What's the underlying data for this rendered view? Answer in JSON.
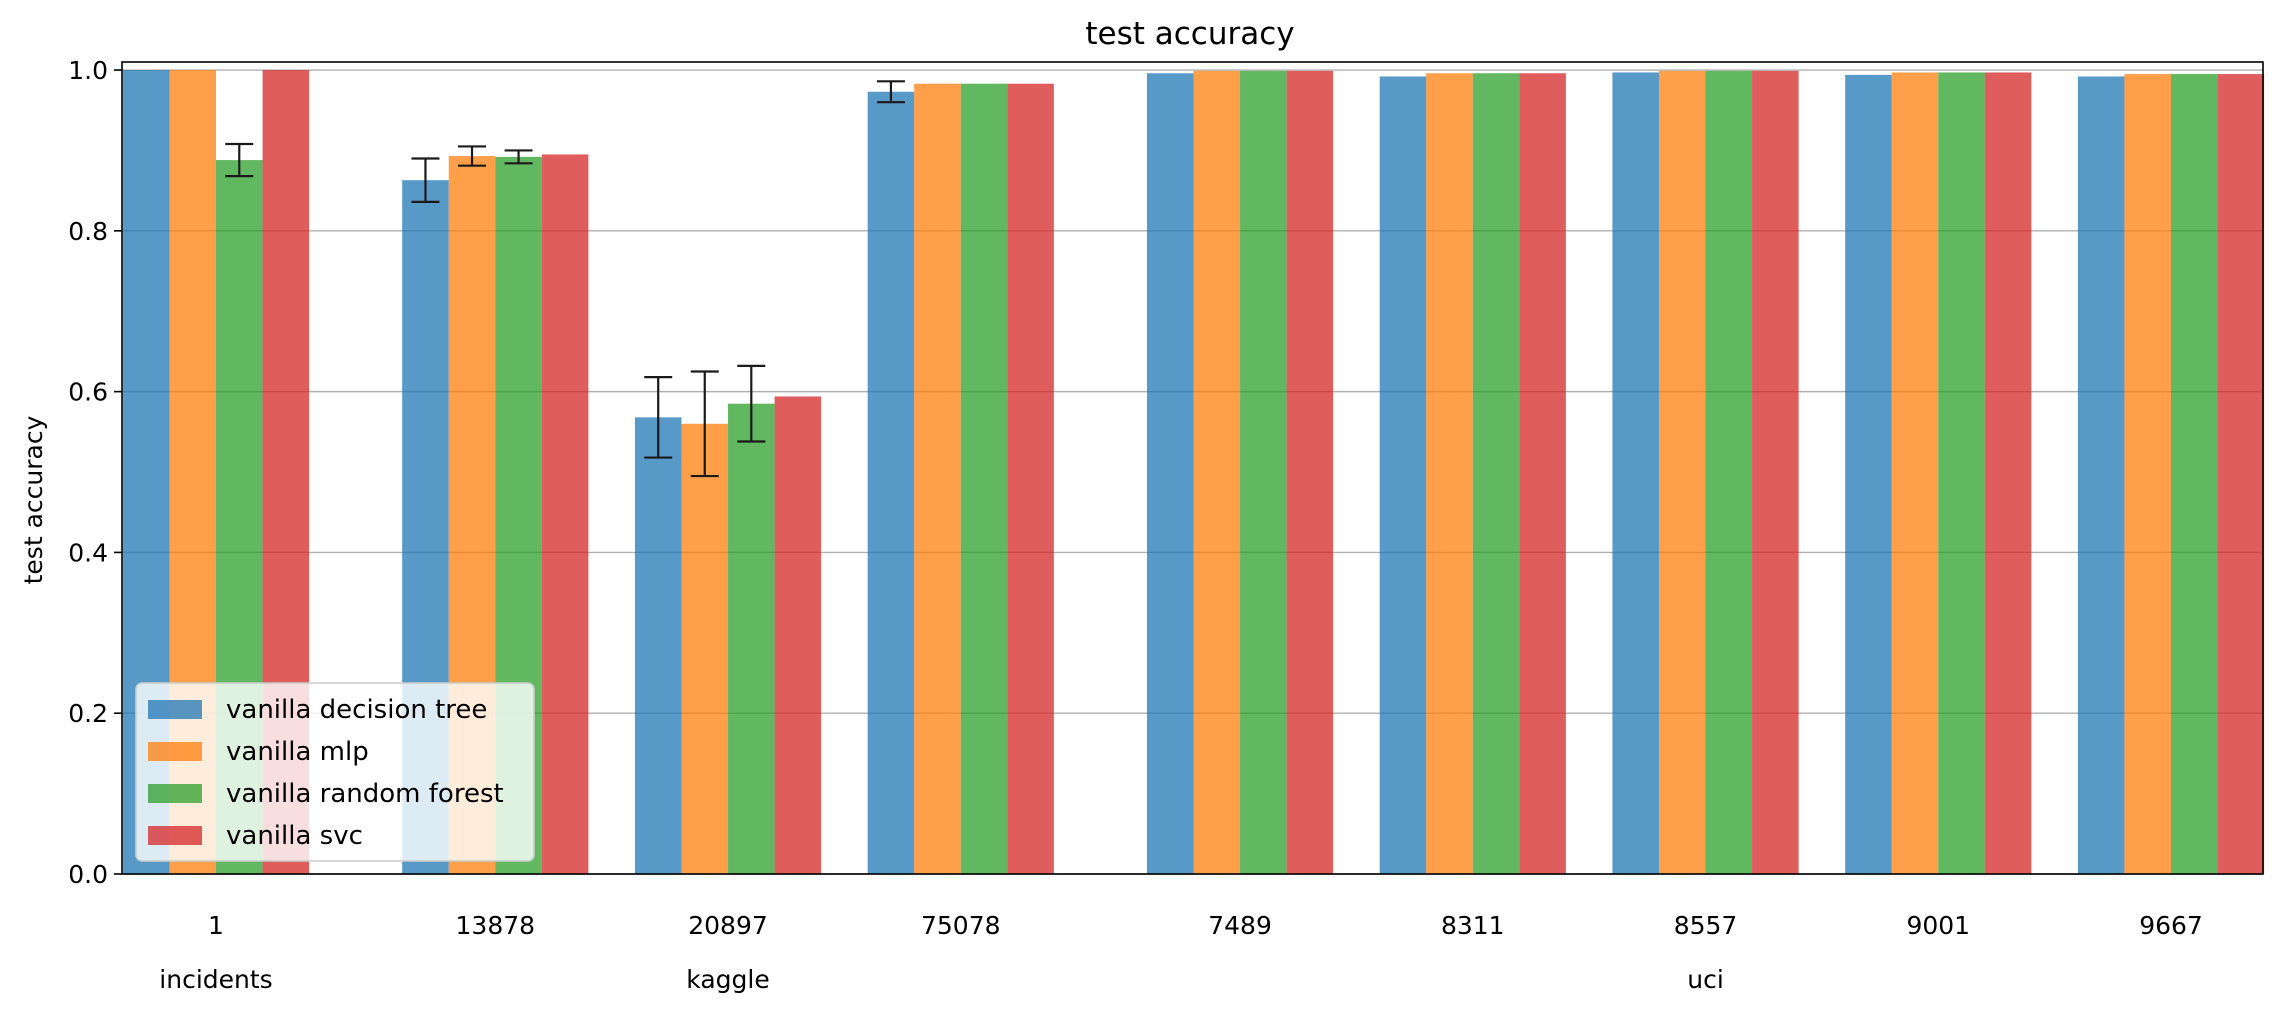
{
  "chart_data": {
    "type": "bar",
    "title": "test accuracy",
    "xlabel": "",
    "ylabel": "test accuracy",
    "ylim": [
      0,
      1.01
    ],
    "yticks": [
      "0.0",
      "0.2",
      "0.4",
      "0.6",
      "0.8",
      "1.0"
    ],
    "grid": "y",
    "legend_placement": "lower-left",
    "categories": [
      "1",
      "13878",
      "20897",
      "75078",
      "7489",
      "8311",
      "8557",
      "9001",
      "9667"
    ],
    "groups": [
      {
        "label": "incidents",
        "categories": [
          "1"
        ]
      },
      {
        "label": "kaggle",
        "categories": [
          "13878",
          "20897",
          "75078"
        ]
      },
      {
        "label": "uci",
        "categories": [
          "7489",
          "8311",
          "8557",
          "9001",
          "9667"
        ]
      }
    ],
    "series": [
      {
        "name": "vanilla decision tree",
        "color": "#1f77b4",
        "values": [
          1.0,
          0.863,
          0.568,
          0.973,
          0.996,
          0.992,
          0.997,
          0.994,
          0.992
        ],
        "errors": [
          0,
          0.027,
          0.05,
          0.013,
          0,
          0,
          0,
          0,
          0
        ]
      },
      {
        "name": "vanilla mlp",
        "color": "#ff7f0e",
        "values": [
          1.0,
          0.893,
          0.56,
          0.983,
          0.999,
          0.996,
          0.999,
          0.997,
          0.995
        ],
        "errors": [
          0,
          0.012,
          0.065,
          0,
          0,
          0,
          0,
          0,
          0
        ]
      },
      {
        "name": "vanilla random forest",
        "color": "#2ca02c",
        "values": [
          0.888,
          0.892,
          0.585,
          0.983,
          0.999,
          0.996,
          0.999,
          0.997,
          0.995
        ],
        "errors": [
          0.02,
          0.008,
          0.047,
          0,
          0,
          0,
          0,
          0,
          0
        ]
      },
      {
        "name": "vanilla svc",
        "color": "#d62728",
        "values": [
          1.0,
          0.895,
          0.594,
          0.983,
          0.999,
          0.996,
          0.999,
          0.997,
          0.995
        ],
        "errors": [
          0,
          0,
          0,
          0,
          0,
          0,
          0,
          0,
          0
        ]
      }
    ]
  }
}
